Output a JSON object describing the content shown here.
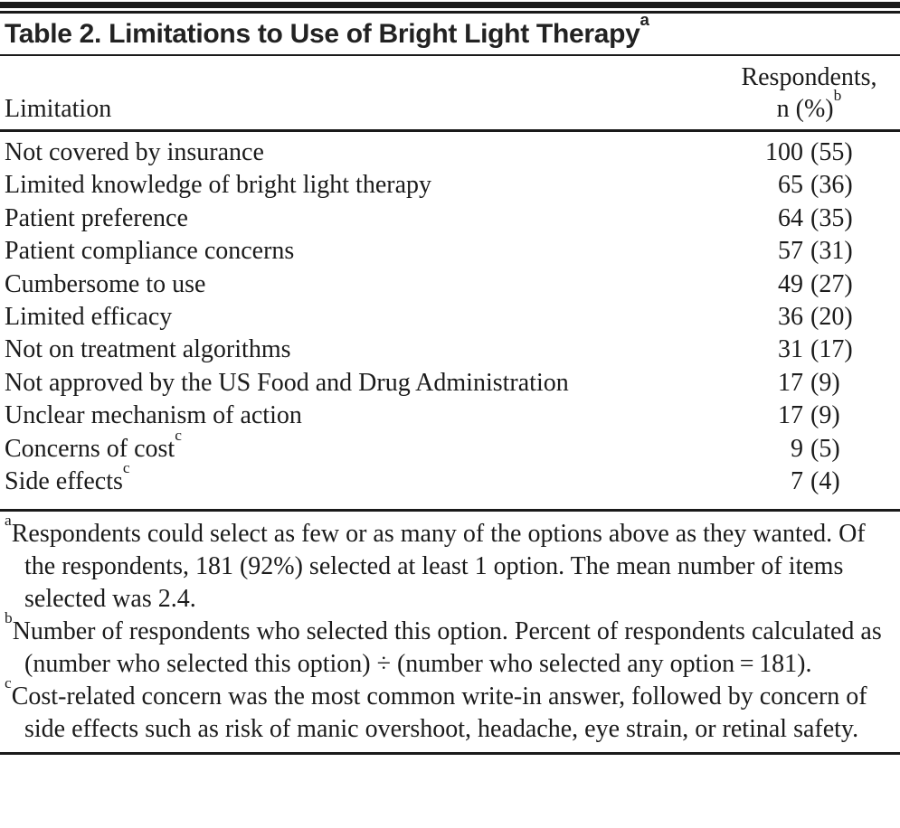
{
  "table": {
    "title": "Table 2. Limitations to Use of Bright Light Therapy",
    "title_marker": "a",
    "columns": {
      "limitation": "Limitation",
      "respondents_line1": "Respondents,",
      "respondents_line2": "n (%)",
      "respondents_marker": "b"
    },
    "rows": [
      {
        "label": "Not covered by insurance",
        "marker": "",
        "n": "100",
        "pct": "55"
      },
      {
        "label": "Limited knowledge of bright light therapy",
        "marker": "",
        "n": "65",
        "pct": "36"
      },
      {
        "label": "Patient preference",
        "marker": "",
        "n": "64",
        "pct": "35"
      },
      {
        "label": "Patient compliance concerns",
        "marker": "",
        "n": "57",
        "pct": "31"
      },
      {
        "label": "Cumbersome to use",
        "marker": "",
        "n": "49",
        "pct": "27"
      },
      {
        "label": "Limited efficacy",
        "marker": "",
        "n": "36",
        "pct": "20"
      },
      {
        "label": "Not on treatment algorithms",
        "marker": "",
        "n": "31",
        "pct": "17"
      },
      {
        "label": "Not approved by the US Food and Drug Administration",
        "marker": "",
        "n": "17",
        "pct": "9"
      },
      {
        "label": "Unclear mechanism of action",
        "marker": "",
        "n": "17",
        "pct": "9"
      },
      {
        "label": "Concerns of cost",
        "marker": "c",
        "n": "9",
        "pct": "5"
      },
      {
        "label": "Side effects",
        "marker": "c",
        "n": "7",
        "pct": "4"
      }
    ],
    "footnotes": [
      {
        "marker": "a",
        "text": "Respondents could select as few or as many of the options above as they wanted. Of the respondents, 181 (92%) selected at least 1 option. The mean number of items selected was 2.4."
      },
      {
        "marker": "b",
        "text": "Number of respondents who selected this option. Percent of respondents calculated as (number who selected this option) ÷ (number who selected any option = 181)."
      },
      {
        "marker": "c",
        "text": "Cost-related concern was the most common write-in answer, followed by concern of side effects such as risk of manic overshoot, headache, eye strain, or retinal safety."
      }
    ],
    "colors": {
      "text": "#1b1b1b",
      "rule": "#1a1a1a",
      "background": "#ffffff"
    }
  },
  "chart_data": {
    "type": "table",
    "title": "Table 2. Limitations to Use of Bright Light Therapy",
    "columns": [
      "Limitation",
      "Respondents, n (%)"
    ],
    "categories": [
      "Not covered by insurance",
      "Limited knowledge of bright light therapy",
      "Patient preference",
      "Patient compliance concerns",
      "Cumbersome to use",
      "Limited efficacy",
      "Not on treatment algorithms",
      "Not approved by the US Food and Drug Administration",
      "Unclear mechanism of action",
      "Concerns of cost",
      "Side effects"
    ],
    "series": [
      {
        "name": "Respondents, n",
        "values": [
          100,
          65,
          64,
          57,
          49,
          36,
          31,
          17,
          17,
          9,
          7
        ]
      },
      {
        "name": "Respondents, %",
        "values": [
          55,
          36,
          35,
          31,
          27,
          20,
          17,
          9,
          9,
          5,
          4
        ]
      }
    ],
    "total_respondents_any_option": 181,
    "pct_selected_at_least_one": 92,
    "mean_items_selected": 2.4
  }
}
